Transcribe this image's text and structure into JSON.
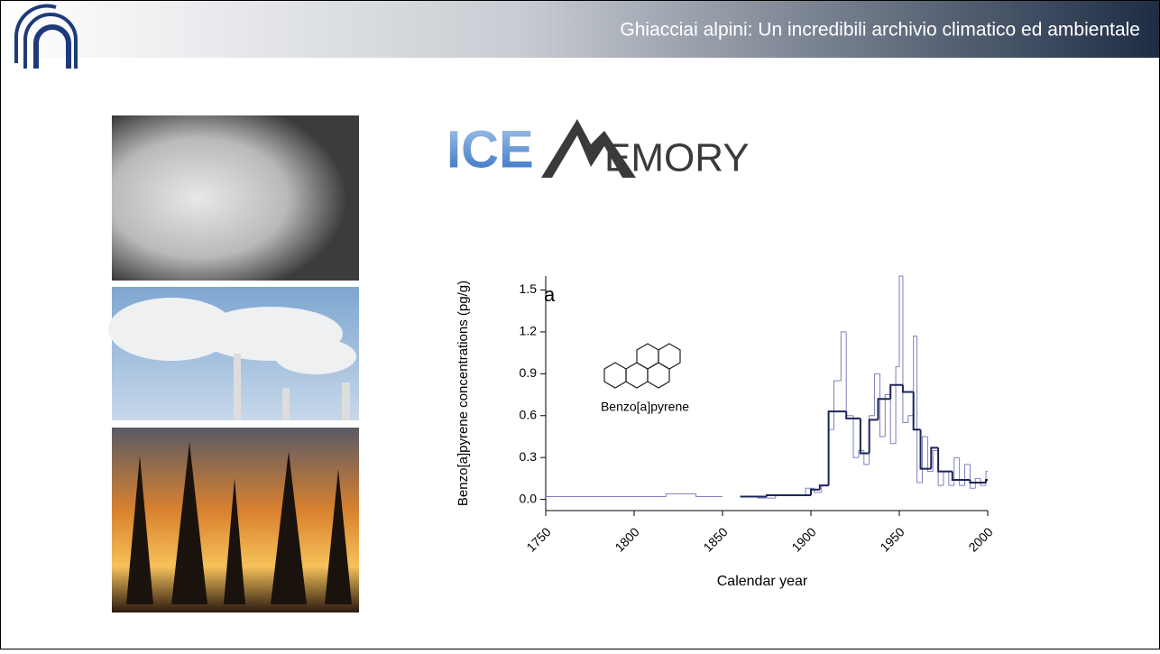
{
  "header": {
    "title": "Ghiacciai alpini: Un incredibili archivio climatico ed ambientale"
  },
  "logo": {
    "part1": "ICE",
    "part2": "EMORY"
  },
  "chart_data": {
    "type": "step-line",
    "ylabel": "Benzo[a]pyrene concentrations (pg/g)",
    "xlabel": "Calendar year",
    "annotations": [
      "a",
      "Benzo[a]pyrene"
    ],
    "xlim": [
      1750,
      2000
    ],
    "xticks": [
      1750,
      1800,
      1850,
      1900,
      1950,
      2000
    ],
    "ylim": [
      -0.08,
      1.6
    ],
    "yticks": [
      {
        "value": 0,
        "label": "0.0"
      },
      0.3,
      0.6,
      0.9,
      1.2,
      1.5
    ],
    "series": [
      {
        "color": "#7d80bd",
        "width": 1,
        "x": [
          1750,
          1818,
          1835,
          1850,
          1860,
          1870,
          1880,
          1890,
          1897,
          1902,
          1906,
          1910,
          1913,
          1917,
          1920,
          1924,
          1927,
          1930,
          1933,
          1936,
          1939,
          1942,
          1945,
          1948,
          1950,
          1952,
          1955,
          1958,
          1960,
          1963,
          1966,
          1969,
          1972,
          1975,
          1978,
          1981,
          1984,
          1987,
          1990,
          1993,
          1996,
          1999
        ],
        "values": [
          0.02,
          0.04,
          0.02,
          null,
          0.02,
          0.01,
          0.03,
          0.03,
          0.08,
          0.05,
          0.1,
          0.5,
          0.85,
          1.2,
          0.6,
          0.3,
          0.35,
          0.25,
          0.6,
          0.9,
          0.45,
          0.75,
          0.4,
          0.95,
          1.6,
          0.55,
          0.6,
          1.17,
          0.12,
          0.45,
          0.2,
          0.35,
          0.1,
          0.2,
          0.1,
          0.3,
          0.1,
          0.25,
          0.08,
          0.15,
          0.1,
          0.2
        ]
      },
      {
        "color": "#1c2558",
        "width": 2,
        "x": [
          1860,
          1875,
          1890,
          1900,
          1905,
          1910,
          1920,
          1928,
          1933,
          1938,
          1945,
          1952,
          1958,
          1962,
          1968,
          1972,
          1980,
          1990,
          1999
        ],
        "values": [
          0.02,
          0.03,
          0.03,
          0.07,
          0.1,
          0.63,
          0.58,
          0.33,
          0.57,
          0.72,
          0.82,
          0.77,
          0.5,
          0.22,
          0.37,
          0.2,
          0.14,
          0.12,
          0.14
        ]
      }
    ]
  }
}
